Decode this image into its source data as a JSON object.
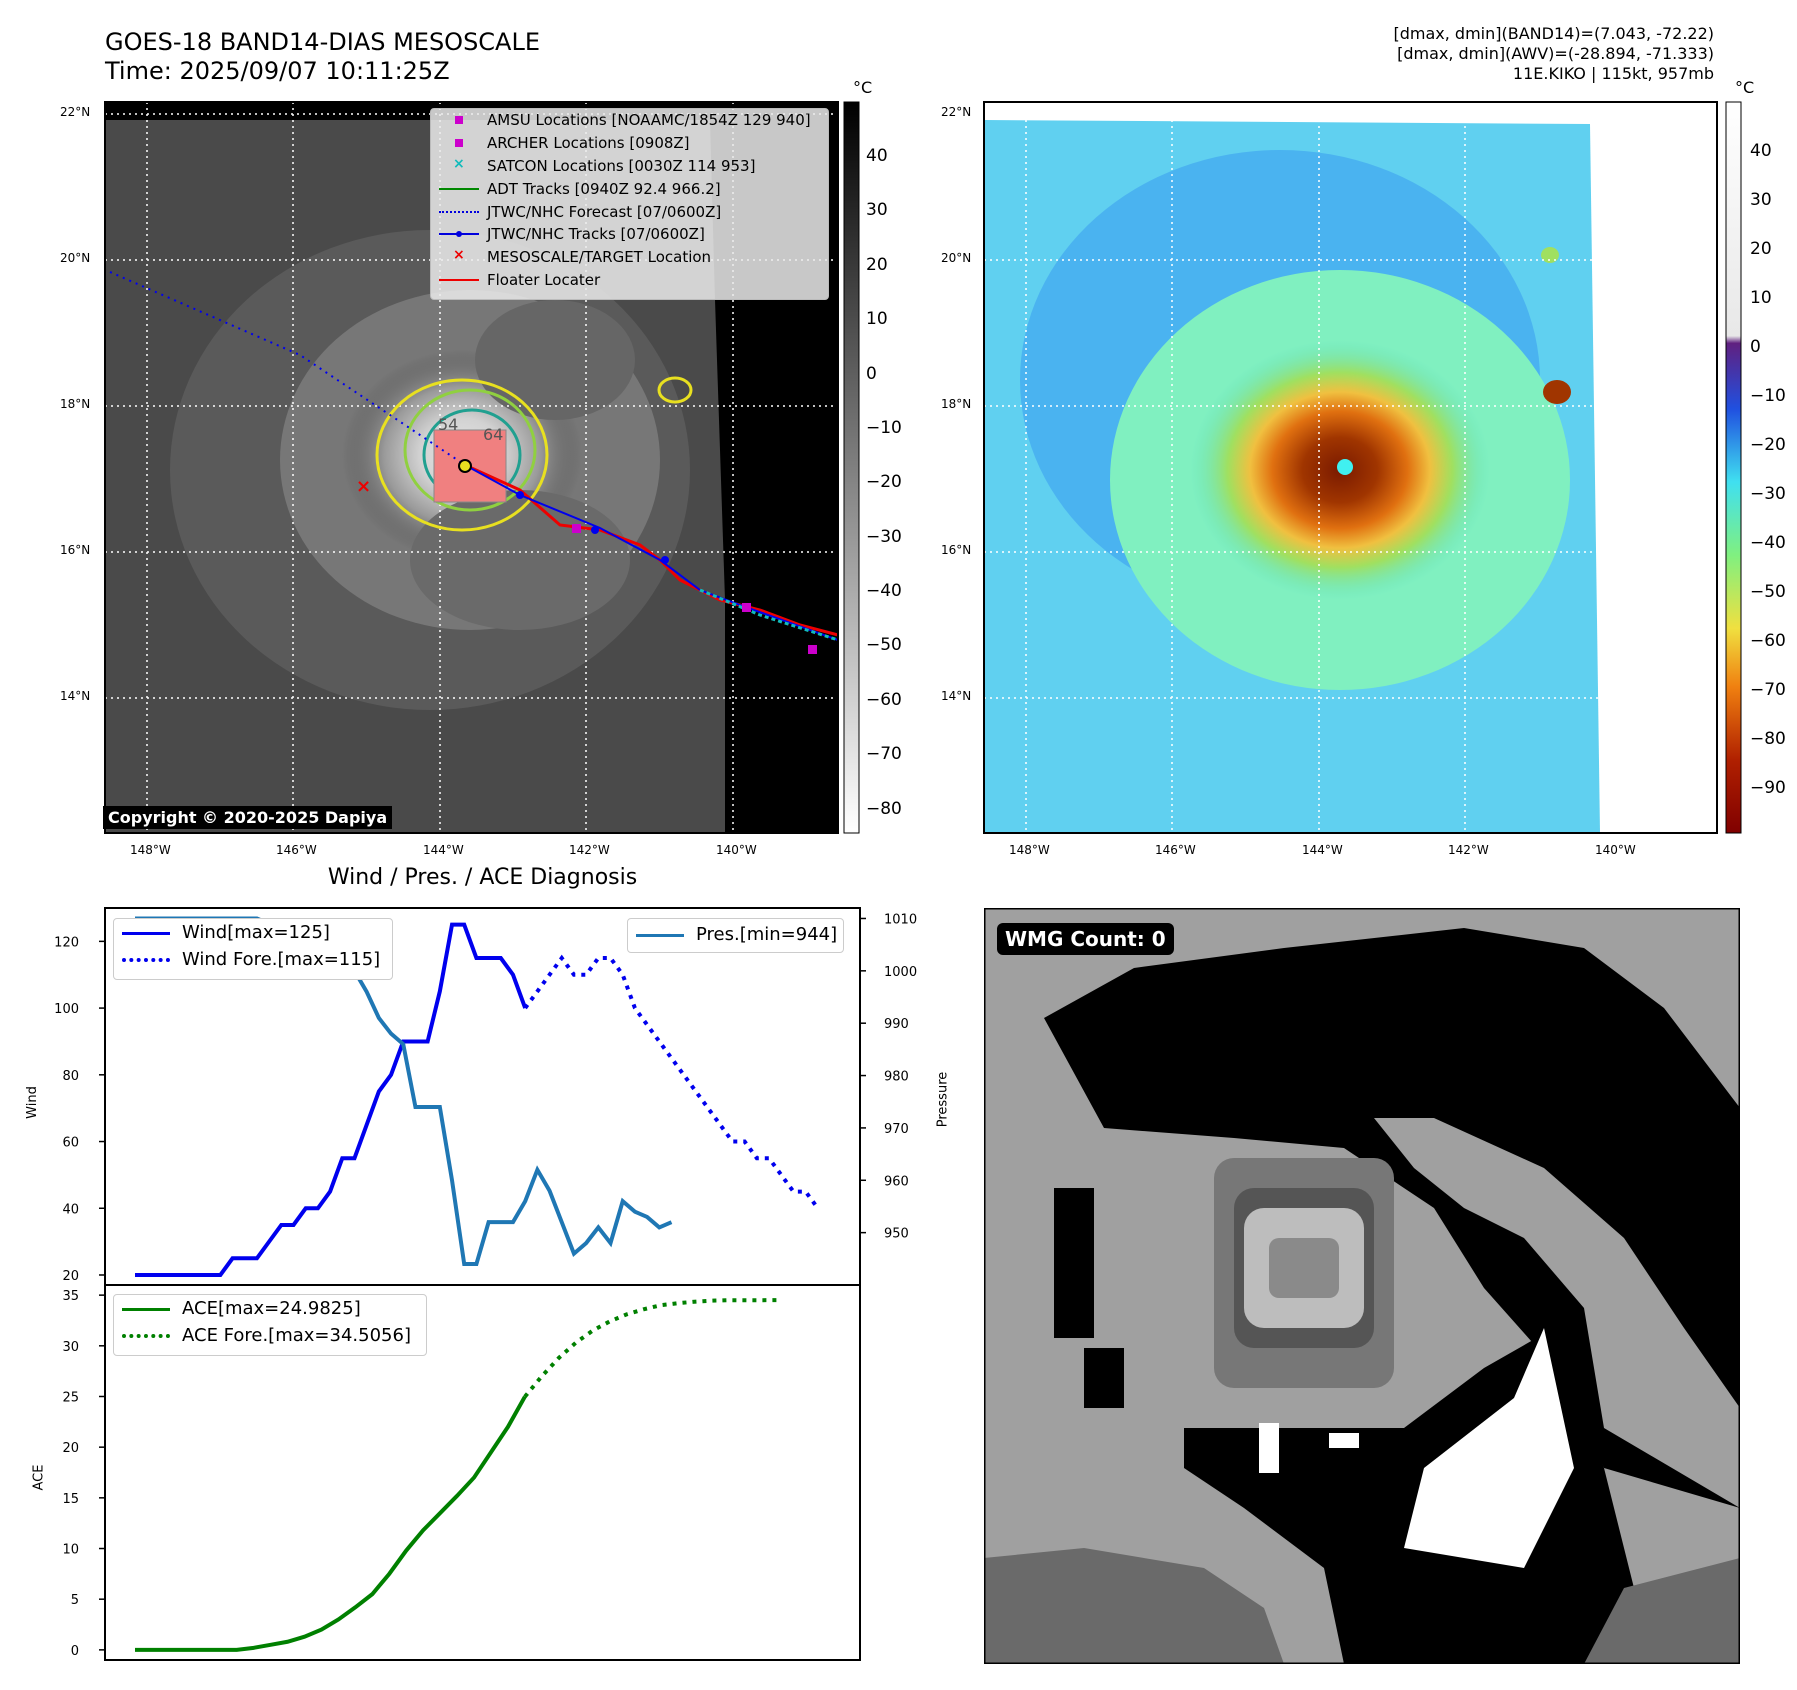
{
  "header": {
    "title_line1": "GOES-18 BAND14-DIAS MESOSCALE",
    "title_line2": "Time: 2025/09/07 10:11:25Z",
    "info_line1": "[dmax, dmin](BAND14)=(7.043, -72.22)",
    "info_line2": "[dmax, dmin](AWV)=(-28.894, -71.333)",
    "info_line3": "11E.KIKO | 115kt, 957mb"
  },
  "map_axes": {
    "lat_labels": [
      "22°N",
      "20°N",
      "18°N",
      "16°N",
      "14°N"
    ],
    "lon_labels": [
      "148°W",
      "146°W",
      "144°W",
      "142°W",
      "140°W"
    ]
  },
  "ir_panel": {
    "copyright": "Copyright © 2020-2025 Dapiya",
    "colorbar_unit": "°C",
    "colorbar_ticks": [
      "40",
      "30",
      "20",
      "10",
      "0",
      "−10",
      "−20",
      "−30",
      "−40",
      "−50",
      "−60",
      "−70",
      "−80"
    ],
    "legend": [
      {
        "label": "AMSU Locations [NOAAMC/1854Z 129 940]",
        "color": "#cc00cc",
        "marker": "square"
      },
      {
        "label": "ARCHER Locations [0908Z]",
        "color": "#cc00cc",
        "marker": "square"
      },
      {
        "label": "SATCON Locations [0030Z 114 953]",
        "color": "#11bbbb",
        "marker": "x"
      },
      {
        "label": "ADT Tracks [0940Z 92.4 966.2]",
        "color": "#008800",
        "marker": "line"
      },
      {
        "label": "JTWC/NHC Forecast [07/0600Z]",
        "color": "#0000dd",
        "marker": "dotted"
      },
      {
        "label": "JTWC/NHC Tracks [07/0600Z]",
        "color": "#0000dd",
        "marker": "line-dot"
      },
      {
        "label": "MESOSCALE/TARGET Location",
        "color": "#ee0000",
        "marker": "x"
      },
      {
        "label": "Floater Locater",
        "color": "#ee0000",
        "marker": "line"
      }
    ],
    "contour_labels": [
      "54",
      "64"
    ]
  },
  "awv_panel": {
    "colorbar_unit": "°C",
    "colorbar_ticks": [
      "40",
      "30",
      "20",
      "10",
      "0",
      "−10",
      "−20",
      "−30",
      "−40",
      "−50",
      "−60",
      "−70",
      "−80",
      "−90"
    ]
  },
  "wmg_panel": {
    "count_label": "WMG Count: 0"
  },
  "chart_data": [
    {
      "type": "line",
      "title": "Wind / Pres. / ACE Diagnosis",
      "ylabel": "Wind",
      "ylabel_right": "Pressure",
      "ylim": [
        17,
        130
      ],
      "ylim_right": [
        940,
        1012
      ],
      "yticks": [
        20,
        40,
        60,
        80,
        100,
        120
      ],
      "yticks_right": [
        950,
        960,
        970,
        980,
        990,
        1000,
        1010
      ],
      "series": [
        {
          "name": "Wind[max=125]",
          "color": "#0000ee",
          "style": "solid",
          "x": [
            0,
            1,
            2,
            3,
            4,
            5,
            6,
            7,
            8,
            9,
            10,
            11,
            12,
            13,
            14,
            15,
            16,
            17,
            18,
            19,
            20,
            21,
            22,
            23,
            24,
            25,
            26,
            27,
            28,
            29,
            30,
            31,
            32
          ],
          "values": [
            20,
            20,
            20,
            20,
            20,
            20,
            20,
            20,
            25,
            25,
            25,
            30,
            35,
            35,
            40,
            40,
            45,
            55,
            55,
            65,
            75,
            80,
            90,
            90,
            90,
            105,
            125,
            125,
            115,
            115,
            115,
            110,
            100
          ]
        },
        {
          "name": "Wind Fore.[max=115]",
          "color": "#0000ee",
          "style": "dotted",
          "x": [
            32,
            33,
            34,
            35,
            36,
            37,
            38,
            39,
            40,
            41,
            42,
            43,
            44,
            45,
            46,
            47,
            48,
            49,
            50,
            51,
            52,
            53,
            54,
            55,
            56
          ],
          "values": [
            100,
            105,
            110,
            115,
            110,
            110,
            115,
            115,
            110,
            100,
            95,
            90,
            85,
            80,
            75,
            70,
            65,
            60,
            60,
            55,
            55,
            50,
            45,
            45,
            40
          ]
        },
        {
          "name": "Pres.[min=944]",
          "color": "#1f77b4",
          "style": "solid",
          "axis": "right",
          "x": [
            0,
            1,
            2,
            3,
            4,
            5,
            6,
            7,
            8,
            9,
            10,
            11,
            12,
            13,
            14,
            15,
            16,
            17,
            18,
            19,
            20,
            21,
            22,
            23,
            24,
            25,
            26,
            27,
            28,
            29,
            30,
            31,
            32,
            33,
            34,
            35,
            36,
            37,
            38,
            39,
            40,
            41,
            42,
            43,
            44
          ],
          "values": [
            1010,
            1010,
            1010,
            1010,
            1010,
            1010,
            1010,
            1010,
            1010,
            1010,
            1010,
            1009,
            1009,
            1008,
            1007,
            1006,
            1003,
            1002,
            1000,
            996,
            991,
            988,
            986,
            974,
            974,
            974,
            960,
            944,
            944,
            952,
            952,
            952,
            956,
            962,
            958,
            952,
            946,
            948,
            951,
            948,
            956,
            954,
            953,
            951,
            952
          ]
        }
      ]
    },
    {
      "type": "line",
      "ylabel": "ACE",
      "ylim": [
        -1,
        36
      ],
      "yticks": [
        0,
        5,
        10,
        15,
        20,
        25,
        30,
        35
      ],
      "series": [
        {
          "name": "ACE[max=24.9825]",
          "color": "#008000",
          "style": "solid",
          "x": [
            0,
            4,
            8,
            10,
            12,
            14,
            16,
            18,
            20,
            22,
            24,
            26,
            28,
            30,
            32,
            34,
            36,
            38,
            40,
            42,
            44,
            46
          ],
          "values": [
            0,
            0,
            0,
            0,
            0,
            0.2,
            0.5,
            0.8,
            1.3,
            2.0,
            3.0,
            4.2,
            5.5,
            7.5,
            9.8,
            11.8,
            13.5,
            15.2,
            17.0,
            19.5,
            22.0,
            24.98
          ]
        },
        {
          "name": "ACE Fore.[max=34.5056]",
          "color": "#008000",
          "style": "dotted",
          "x": [
            46,
            48,
            50,
            52,
            54,
            56,
            58,
            60,
            62,
            64,
            66,
            68,
            70,
            72,
            74,
            76
          ],
          "values": [
            24.98,
            27.0,
            28.8,
            30.3,
            31.5,
            32.4,
            33.1,
            33.6,
            34.0,
            34.2,
            34.35,
            34.45,
            34.5,
            34.5,
            34.5,
            34.51
          ]
        }
      ]
    }
  ]
}
